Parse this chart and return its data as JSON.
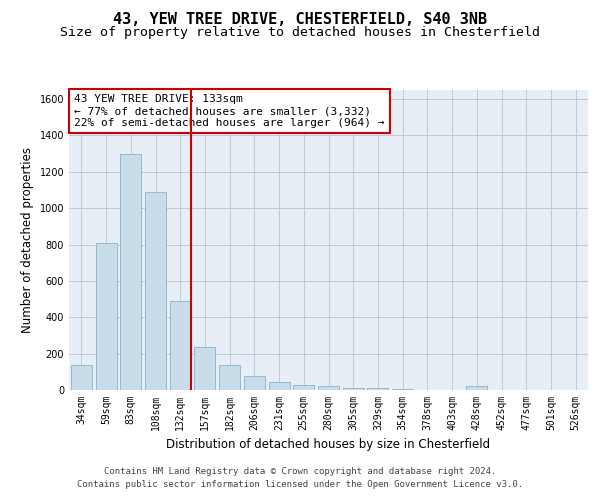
{
  "title1": "43, YEW TREE DRIVE, CHESTERFIELD, S40 3NB",
  "title2": "Size of property relative to detached houses in Chesterfield",
  "xlabel": "Distribution of detached houses by size in Chesterfield",
  "ylabel": "Number of detached properties",
  "categories": [
    "34sqm",
    "59sqm",
    "83sqm",
    "108sqm",
    "132sqm",
    "157sqm",
    "182sqm",
    "206sqm",
    "231sqm",
    "255sqm",
    "280sqm",
    "305sqm",
    "329sqm",
    "354sqm",
    "378sqm",
    "403sqm",
    "428sqm",
    "452sqm",
    "477sqm",
    "501sqm",
    "526sqm"
  ],
  "values": [
    140,
    810,
    1300,
    1090,
    490,
    235,
    135,
    75,
    45,
    30,
    20,
    13,
    10,
    3,
    2,
    1,
    20,
    0,
    0,
    0,
    0
  ],
  "bar_color": "#c8dcea",
  "bar_edge_color": "#8ab4cc",
  "vline_x_index": 4,
  "vline_color": "#cc0000",
  "annotation_text": "43 YEW TREE DRIVE: 133sqm\n← 77% of detached houses are smaller (3,332)\n22% of semi-detached houses are larger (964) →",
  "annotation_box_color": "#ffffff",
  "annotation_box_edge_color": "#cc0000",
  "ylim": [
    0,
    1650
  ],
  "yticks": [
    0,
    200,
    400,
    600,
    800,
    1000,
    1200,
    1400,
    1600
  ],
  "grid_color": "#c0c8d8",
  "background_color": "#e8eef6",
  "footer_line1": "Contains HM Land Registry data © Crown copyright and database right 2024.",
  "footer_line2": "Contains public sector information licensed under the Open Government Licence v3.0.",
  "title_fontsize": 11,
  "subtitle_fontsize": 9.5,
  "axis_label_fontsize": 8.5,
  "tick_fontsize": 7,
  "footer_fontsize": 6.5,
  "annotation_fontsize": 8
}
